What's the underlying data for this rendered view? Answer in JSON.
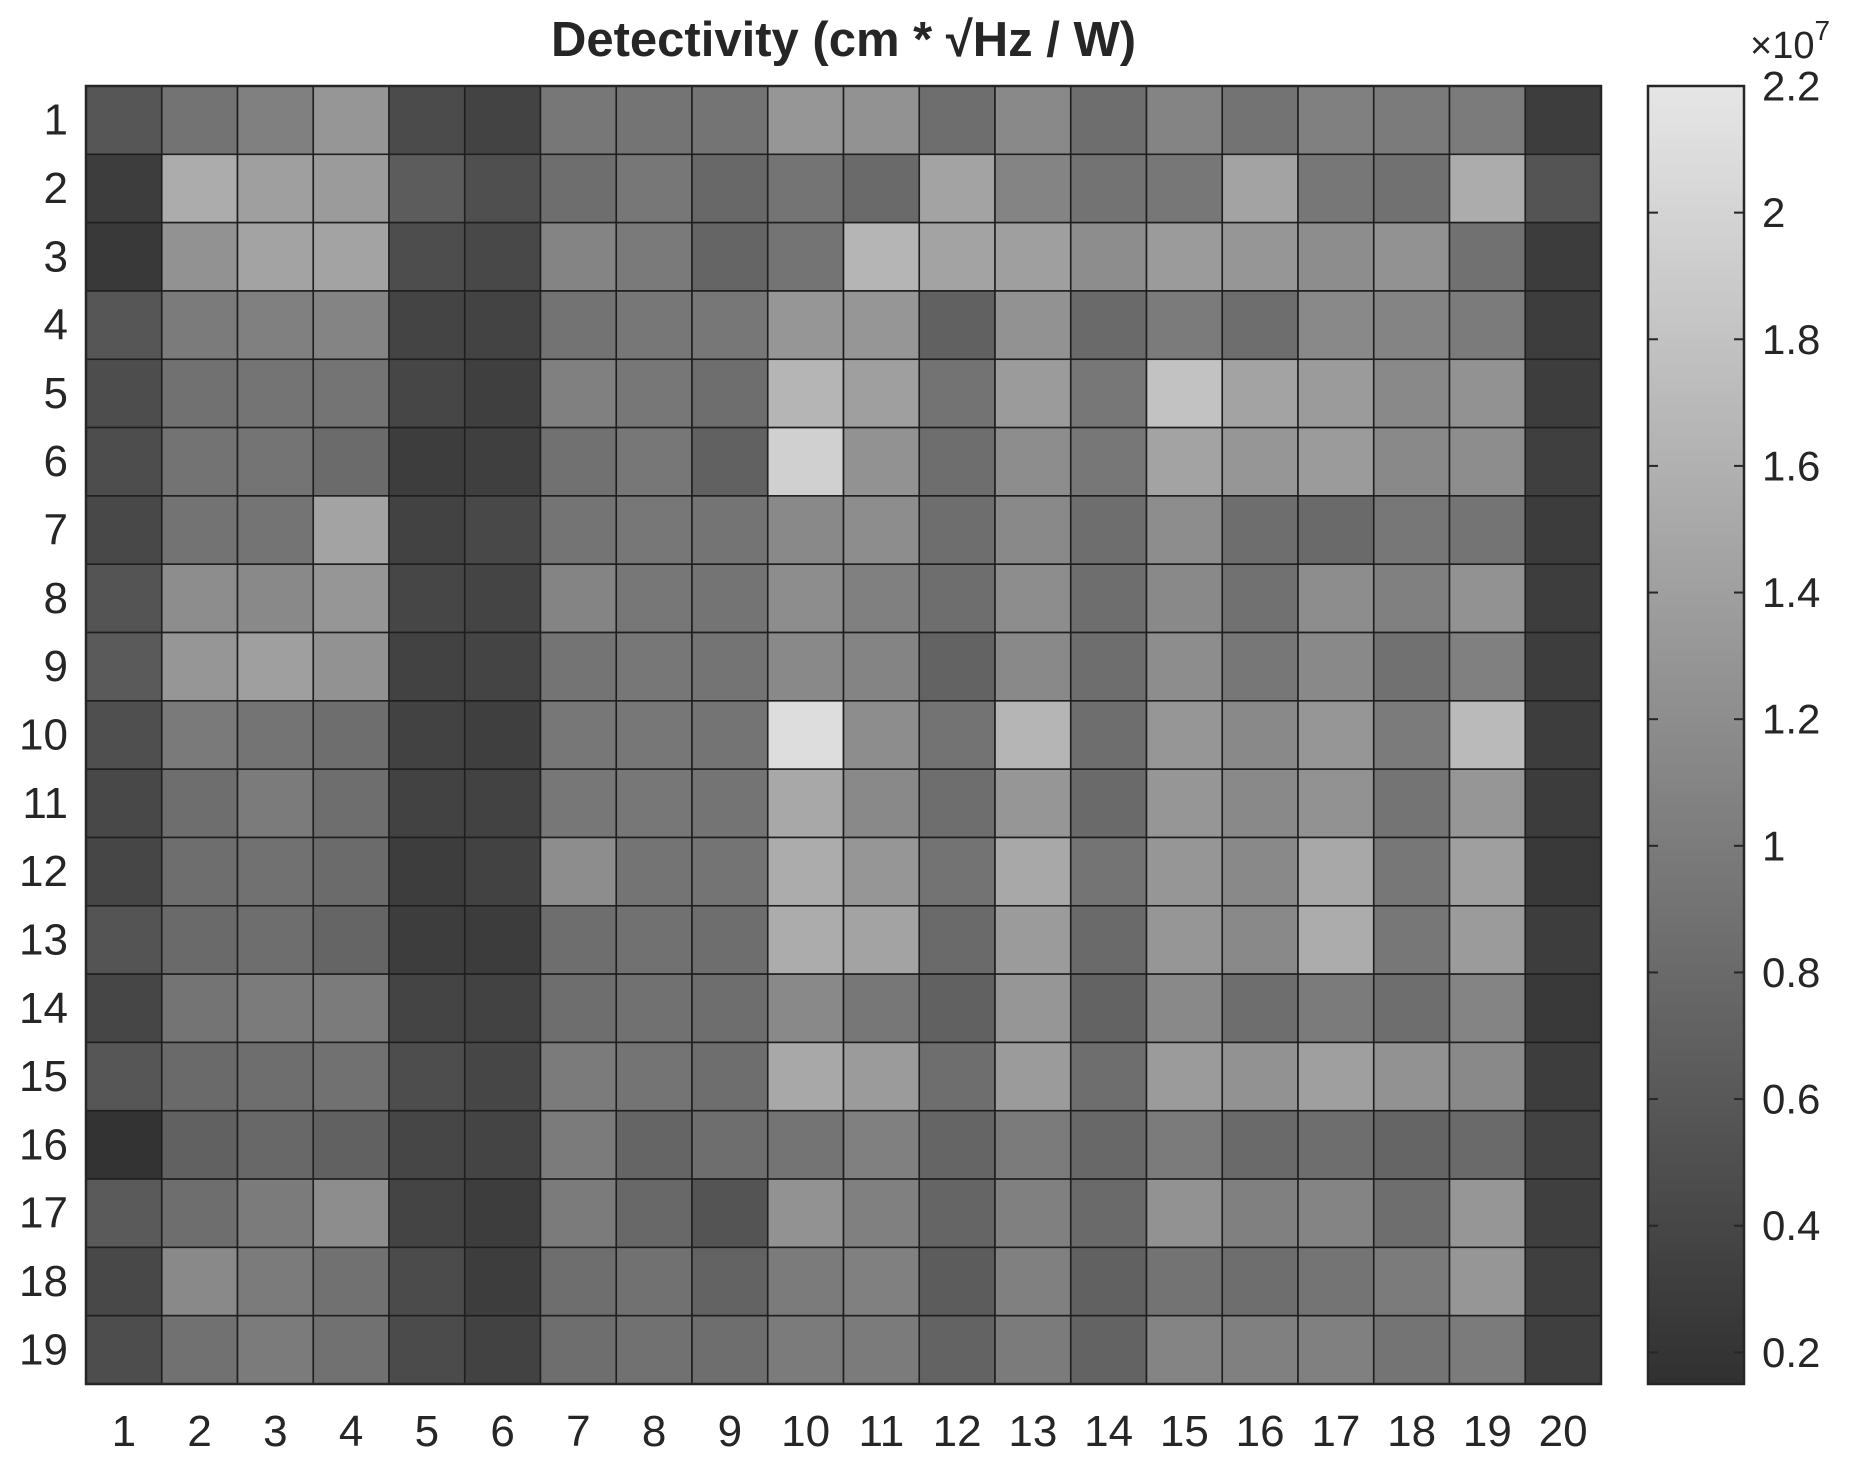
{
  "chart_data": {
    "type": "heatmap",
    "title": "Detectivity (cm * √Hz / W)",
    "xlabel": "",
    "ylabel": "",
    "x_categories": [
      "1",
      "2",
      "3",
      "4",
      "5",
      "6",
      "7",
      "8",
      "9",
      "10",
      "11",
      "12",
      "13",
      "14",
      "15",
      "16",
      "17",
      "18",
      "19",
      "20"
    ],
    "y_categories": [
      "1",
      "2",
      "3",
      "4",
      "5",
      "6",
      "7",
      "8",
      "9",
      "10",
      "11",
      "12",
      "13",
      "14",
      "15",
      "16",
      "17",
      "18",
      "19"
    ],
    "colormap": "gray",
    "clim": [
      0.15,
      2.2
    ],
    "colorbar": {
      "ticks": [
        0.2,
        0.4,
        0.6,
        0.8,
        1,
        1.2,
        1.4,
        1.6,
        1.8,
        2,
        2.2
      ],
      "tick_labels": [
        "0.2",
        "0.4",
        "0.6",
        "0.8",
        "1",
        "1.2",
        "1.4",
        "1.6",
        "1.8",
        "2",
        "2.2"
      ],
      "multiplier_base": "×10",
      "multiplier_exp": "7"
    },
    "value_scale": "×10^7 cm·√Hz/W",
    "grid": true,
    "values": [
      [
        0.58,
        0.9,
        1.05,
        1.3,
        0.45,
        0.36,
        0.95,
        0.92,
        0.92,
        1.3,
        1.25,
        0.85,
        1.15,
        0.85,
        1.1,
        0.9,
        1.05,
        1.0,
        1.0,
        0.3
      ],
      [
        0.3,
        1.55,
        1.4,
        1.35,
        0.65,
        0.5,
        0.85,
        0.95,
        0.78,
        0.92,
        0.8,
        1.45,
        1.1,
        0.9,
        0.95,
        1.45,
        0.95,
        0.88,
        1.55,
        0.55
      ],
      [
        0.25,
        1.25,
        1.45,
        1.45,
        0.48,
        0.42,
        1.1,
        0.98,
        0.75,
        0.92,
        1.65,
        1.45,
        1.4,
        1.2,
        1.35,
        1.3,
        1.2,
        1.25,
        0.88,
        0.28
      ],
      [
        0.58,
        1.0,
        1.05,
        1.1,
        0.38,
        0.36,
        0.9,
        0.95,
        0.95,
        1.3,
        1.3,
        0.7,
        1.25,
        0.8,
        1.0,
        0.85,
        1.15,
        1.1,
        1.0,
        0.3
      ],
      [
        0.48,
        0.88,
        0.92,
        0.92,
        0.4,
        0.32,
        1.05,
        0.95,
        0.85,
        1.65,
        1.4,
        0.9,
        1.35,
        0.95,
        1.8,
        1.45,
        1.35,
        1.15,
        1.25,
        0.3
      ],
      [
        0.48,
        0.9,
        0.92,
        0.82,
        0.3,
        0.32,
        0.88,
        0.95,
        0.7,
        1.95,
        1.25,
        0.85,
        1.2,
        0.95,
        1.45,
        1.3,
        1.35,
        1.15,
        1.2,
        0.32
      ],
      [
        0.42,
        0.9,
        0.92,
        1.45,
        0.35,
        0.42,
        0.92,
        0.95,
        0.92,
        1.15,
        1.2,
        0.85,
        1.15,
        0.85,
        1.2,
        0.85,
        0.8,
        0.95,
        0.92,
        0.28
      ],
      [
        0.55,
        1.2,
        1.15,
        1.3,
        0.4,
        0.38,
        1.1,
        0.95,
        0.92,
        1.2,
        1.05,
        0.85,
        1.2,
        0.85,
        1.15,
        0.88,
        1.2,
        1.05,
        1.25,
        0.3
      ],
      [
        0.62,
        1.3,
        1.4,
        1.25,
        0.35,
        0.38,
        0.92,
        0.95,
        0.92,
        1.15,
        1.1,
        0.72,
        1.15,
        0.85,
        1.2,
        0.95,
        1.15,
        0.88,
        1.05,
        0.3
      ],
      [
        0.5,
        0.98,
        0.92,
        0.85,
        0.35,
        0.32,
        0.95,
        0.95,
        0.92,
        2.1,
        1.2,
        0.9,
        1.65,
        0.85,
        1.3,
        1.15,
        1.3,
        1.0,
        1.7,
        0.3
      ],
      [
        0.42,
        0.85,
        1.0,
        0.85,
        0.35,
        0.35,
        0.95,
        0.95,
        0.92,
        1.5,
        1.15,
        0.85,
        1.3,
        0.8,
        1.3,
        1.15,
        1.25,
        0.92,
        1.3,
        0.28
      ],
      [
        0.4,
        0.85,
        0.88,
        0.82,
        0.3,
        0.35,
        1.2,
        0.92,
        0.92,
        1.55,
        1.3,
        0.9,
        1.5,
        0.92,
        1.3,
        1.15,
        1.5,
        0.95,
        1.4,
        0.25
      ],
      [
        0.55,
        0.8,
        0.85,
        0.75,
        0.3,
        0.28,
        0.85,
        0.88,
        0.85,
        1.55,
        1.45,
        0.8,
        1.35,
        0.8,
        1.3,
        1.15,
        1.55,
        0.95,
        1.35,
        0.3
      ],
      [
        0.4,
        0.92,
        1.0,
        1.0,
        0.38,
        0.35,
        0.85,
        0.88,
        0.85,
        1.15,
        0.95,
        0.7,
        1.3,
        0.72,
        1.15,
        0.85,
        1.0,
        0.85,
        1.1,
        0.25
      ],
      [
        0.58,
        0.8,
        0.85,
        0.88,
        0.48,
        0.4,
        1.0,
        0.92,
        0.85,
        1.5,
        1.35,
        0.85,
        1.35,
        0.85,
        1.35,
        1.25,
        1.4,
        1.25,
        1.15,
        0.3
      ],
      [
        0.18,
        0.7,
        0.78,
        0.7,
        0.4,
        0.38,
        1.0,
        0.75,
        0.85,
        0.92,
        1.05,
        0.75,
        1.0,
        0.78,
        1.0,
        0.8,
        0.85,
        0.75,
        0.8,
        0.35
      ],
      [
        0.62,
        0.85,
        1.0,
        1.2,
        0.38,
        0.3,
        1.0,
        0.78,
        0.55,
        1.25,
        1.05,
        0.75,
        1.05,
        0.8,
        1.25,
        1.05,
        1.1,
        0.85,
        1.3,
        0.32
      ],
      [
        0.42,
        1.15,
        1.0,
        0.88,
        0.45,
        0.3,
        0.85,
        0.88,
        0.72,
        1.0,
        1.05,
        0.65,
        1.05,
        0.7,
        0.9,
        0.85,
        0.92,
        1.0,
        1.3,
        0.32
      ],
      [
        0.48,
        0.88,
        1.0,
        0.88,
        0.45,
        0.35,
        0.85,
        0.88,
        0.85,
        1.0,
        1.0,
        0.72,
        1.0,
        0.72,
        1.1,
        1.05,
        1.05,
        0.92,
        1.0,
        0.32
      ]
    ]
  }
}
